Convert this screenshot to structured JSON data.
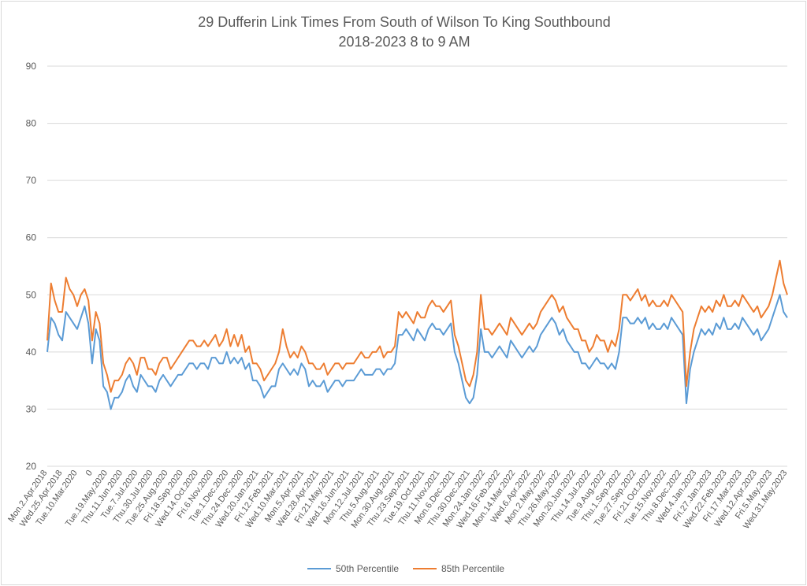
{
  "chart_data": {
    "type": "line",
    "title": [
      "29 Dufferin Link Times From South of Wilson To King Southbound",
      "2018-2023 8 to 9 AM"
    ],
    "xlabel": "",
    "ylabel": "",
    "ylim": [
      20,
      90
    ],
    "yticks": [
      20,
      30,
      40,
      50,
      60,
      70,
      80,
      90
    ],
    "grid": "horizontal",
    "legend": "bottom",
    "x_tick_labels": [
      "Mon.2.Apr.2018",
      "Wed.25.Apr.2018",
      "Tue.10.Mar.2020",
      "0",
      "Tue.19.May.2020",
      "Thu.11.Jun.2020",
      "Tue.7.Jul.2020",
      "Thu.30.Jul.2020",
      "Tue.25.Aug.2020",
      "Fri.18.Sep.2020",
      "Wed.14.Oct.2020",
      "Fri.6.Nov.2020",
      "Tue.1.Dec.2020",
      "Thu.24.Dec.2020",
      "Wed.20.Jan.2021",
      "Fri.12.Feb.2021",
      "Wed.10.Mar.2021",
      "Mon.5.Apr.2021",
      "Wed.28.Apr.2021",
      "Fri.21.May.2021",
      "Wed.16.Jun.2021",
      "Mon.12.Jul.2021",
      "Thu.5.Aug.2021",
      "Mon.30.Aug.2021",
      "Thu.23.Sep.2021",
      "Tue.19.Oct.2021",
      "Thu.11.Nov.2021",
      "Mon.6.Dec.2021",
      "Thu.30.Dec.2021",
      "Mon.24.Jan.2022",
      "Wed.16.Feb.2022",
      "Mon.14.Mar.2022",
      "Wed.6.Apr.2022",
      "Mon.2.May.2022",
      "Thu.26.May.2022",
      "Mon.20.Jun.2022",
      "Thu.14.Jul.2022",
      "Tue.9.Aug.2022",
      "Thu.1.Sep.2022",
      "Tue.27.Sep.2022",
      "Fri.21.Oct.2022",
      "Tue.15.Nov.2022",
      "Thu.8.Dec.2022",
      "Wed.4.Jan.2023",
      "Fri.27.Jan.2023",
      "Wed.22.Feb.2023",
      "Fri.17.Mar.2023",
      "Wed.12.Apr.2023",
      "Fri.5.May.2023",
      "Wed.31.May.2023"
    ],
    "series": [
      {
        "name": "50th Percentile",
        "color": "#5b9bd5",
        "values": [
          40,
          46,
          45,
          43,
          42,
          47,
          46,
          45,
          44,
          46,
          48,
          45,
          38,
          44,
          42,
          34,
          33,
          30,
          32,
          32,
          33,
          35,
          36,
          34,
          33,
          36,
          35,
          34,
          34,
          33,
          35,
          36,
          35,
          34,
          35,
          36,
          36,
          37,
          38,
          38,
          37,
          38,
          38,
          37,
          39,
          39,
          38,
          38,
          40,
          38,
          39,
          38,
          39,
          37,
          38,
          35,
          35,
          34,
          32,
          33,
          34,
          34,
          37,
          38,
          37,
          36,
          37,
          36,
          38,
          37,
          34,
          35,
          34,
          34,
          35,
          33,
          34,
          35,
          35,
          34,
          35,
          35,
          35,
          36,
          37,
          36,
          36,
          36,
          37,
          37,
          36,
          37,
          37,
          38,
          43,
          43,
          44,
          43,
          42,
          44,
          43,
          42,
          44,
          45,
          44,
          44,
          43,
          44,
          45,
          40,
          38,
          35,
          32,
          31,
          32,
          36,
          44,
          40,
          40,
          39,
          40,
          41,
          40,
          39,
          42,
          41,
          40,
          39,
          40,
          41,
          40,
          41,
          43,
          44,
          45,
          46,
          45,
          43,
          44,
          42,
          41,
          40,
          40,
          38,
          38,
          37,
          38,
          39,
          38,
          38,
          37,
          38,
          37,
          40,
          46,
          46,
          45,
          45,
          46,
          45,
          46,
          44,
          45,
          44,
          44,
          45,
          44,
          46,
          45,
          44,
          43,
          31,
          37,
          40,
          42,
          44,
          43,
          44,
          43,
          45,
          44,
          46,
          44,
          44,
          45,
          44,
          46,
          45,
          44,
          43,
          44,
          42,
          43,
          44,
          46,
          48,
          50,
          47,
          46
        ]
      },
      {
        "name": "85th Percentile",
        "color": "#ed7d31",
        "values": [
          42,
          52,
          49,
          47,
          47,
          53,
          51,
          50,
          48,
          50,
          51,
          49,
          42,
          47,
          45,
          38,
          36,
          33,
          35,
          35,
          36,
          38,
          39,
          38,
          36,
          39,
          39,
          37,
          37,
          36,
          38,
          39,
          39,
          37,
          38,
          39,
          40,
          41,
          42,
          42,
          41,
          41,
          42,
          41,
          42,
          43,
          41,
          42,
          44,
          41,
          43,
          41,
          43,
          40,
          41,
          38,
          38,
          37,
          35,
          36,
          37,
          38,
          40,
          44,
          41,
          39,
          40,
          39,
          41,
          40,
          38,
          38,
          37,
          37,
          38,
          36,
          37,
          38,
          38,
          37,
          38,
          38,
          38,
          39,
          40,
          39,
          39,
          40,
          40,
          41,
          39,
          40,
          40,
          41,
          47,
          46,
          47,
          46,
          45,
          47,
          46,
          46,
          48,
          49,
          48,
          48,
          47,
          48,
          49,
          43,
          41,
          38,
          35,
          34,
          36,
          40,
          50,
          44,
          44,
          43,
          44,
          45,
          44,
          43,
          46,
          45,
          44,
          43,
          44,
          45,
          44,
          45,
          47,
          48,
          49,
          50,
          49,
          47,
          48,
          46,
          45,
          44,
          44,
          42,
          42,
          40,
          41,
          43,
          42,
          42,
          40,
          42,
          41,
          44,
          50,
          50,
          49,
          50,
          51,
          49,
          50,
          48,
          49,
          48,
          48,
          49,
          48,
          50,
          49,
          48,
          47,
          34,
          40,
          44,
          46,
          48,
          47,
          48,
          47,
          49,
          48,
          50,
          48,
          48,
          49,
          48,
          50,
          49,
          48,
          47,
          48,
          46,
          47,
          48,
          50,
          53,
          56,
          52,
          50
        ]
      }
    ]
  }
}
